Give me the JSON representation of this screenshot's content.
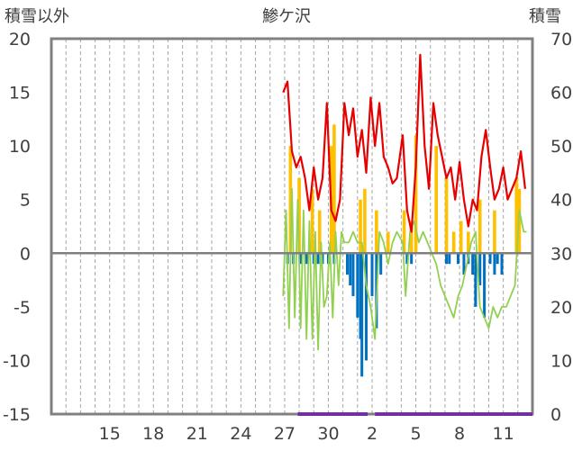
{
  "chart_data": {
    "type": "line",
    "title": "鯵ケ沢",
    "left_axis_label": "積雪以外",
    "right_axis_label": "積雪",
    "left_ylim": [
      -15,
      20
    ],
    "left_ticks": [
      "20",
      "15",
      "10",
      "5",
      "0",
      "-5",
      "-10",
      "-15"
    ],
    "right_ylim": [
      0,
      70
    ],
    "right_ticks": [
      "70",
      "60",
      "50",
      "40",
      "30",
      "20",
      "10",
      "0"
    ],
    "x_ticks": [
      {
        "label": "15",
        "x": 4
      },
      {
        "label": "18",
        "x": 7
      },
      {
        "label": "21",
        "x": 10
      },
      {
        "label": "24",
        "x": 13
      },
      {
        "label": "27",
        "x": 16
      },
      {
        "label": "30",
        "x": 19
      },
      {
        "label": "2",
        "x": 22
      },
      {
        "label": "5",
        "x": 25
      },
      {
        "label": "8",
        "x": 28
      },
      {
        "label": "11",
        "x": 31
      }
    ],
    "xlim": [
      0,
      33
    ],
    "grid": "vertical dashed",
    "colors": {
      "snow_depth": "#e60000",
      "temperature": "#92d050",
      "snowfall": "#ffc000",
      "negative": "#0070c0",
      "bottom_band": "#7030a0",
      "frame": "#808080"
    },
    "series": [
      {
        "key": "snow_depth",
        "axis": "right",
        "color": "#e60000",
        "x": [
          15.9,
          16.2,
          16.5,
          16.8,
          17.1,
          17.4,
          17.7,
          18.0,
          18.3,
          18.6,
          18.9,
          19.2,
          19.5,
          19.8,
          20.1,
          20.4,
          20.7,
          21.0,
          21.3,
          21.6,
          21.9,
          22.2,
          22.5,
          22.8,
          23.1,
          23.4,
          23.7,
          24.1,
          24.4,
          24.7,
          25.0,
          25.3,
          25.6,
          25.9,
          26.2,
          26.5,
          26.8,
          27.1,
          27.4,
          27.7,
          28.0,
          28.3,
          28.6,
          28.9,
          29.2,
          29.5,
          29.8,
          30.1,
          30.4,
          30.7,
          31.0,
          31.3,
          31.6,
          31.9,
          32.2,
          32.5
        ],
        "y": [
          60,
          62,
          49,
          46,
          48,
          44,
          38,
          46,
          40,
          44,
          58,
          38,
          36,
          40,
          58,
          52,
          57,
          48,
          53,
          45,
          59,
          50,
          58,
          48,
          46,
          43,
          44,
          52,
          38,
          34,
          46,
          67,
          50,
          42,
          58,
          52,
          48,
          44,
          46,
          40,
          47,
          40,
          35,
          40,
          38,
          48,
          53,
          46,
          40,
          42,
          46,
          40,
          42,
          44,
          49,
          42
        ]
      },
      {
        "key": "temperature",
        "axis": "left",
        "color": "#92d050",
        "x": [
          15.9,
          16.1,
          16.3,
          16.5,
          16.7,
          16.9,
          17.1,
          17.3,
          17.5,
          17.7,
          17.9,
          18.1,
          18.3,
          18.5,
          18.7,
          18.9,
          19.1,
          19.3,
          19.5,
          19.7,
          19.9,
          20.1,
          20.4,
          20.7,
          21.0,
          21.3,
          21.6,
          21.9,
          22.2,
          22.5,
          22.8,
          23.1,
          23.4,
          23.7,
          24.1,
          24.3,
          24.6,
          24.9,
          25.2,
          25.5,
          25.8,
          26.1,
          26.4,
          26.7,
          27.0,
          27.3,
          27.6,
          27.9,
          28.2,
          28.5,
          28.8,
          29.1,
          29.4,
          29.7,
          30.0,
          30.3,
          30.6,
          30.9,
          31.2,
          31.5,
          31.8,
          32.1,
          32.4,
          32.6
        ],
        "y": [
          -4,
          4,
          -7,
          6,
          -6,
          5,
          -7,
          4,
          -8,
          3,
          -8,
          2,
          -9,
          1,
          -5,
          -4,
          1,
          -6,
          2,
          -3,
          2,
          1,
          1,
          2,
          1,
          1,
          -3,
          -5,
          -8,
          2,
          1,
          -1,
          1,
          2,
          1,
          -4,
          2,
          3,
          1,
          2,
          1,
          0,
          -1,
          -3,
          -4,
          -5,
          -6,
          -4,
          -3,
          -1,
          1,
          2,
          -5,
          -6,
          -7,
          -5,
          -6,
          -5,
          -5,
          -4,
          -3,
          4,
          2,
          2
        ]
      }
    ],
    "snowfall_bars": {
      "x": [
        16.4,
        17.0,
        17.9,
        18.4,
        19.2,
        19.4,
        21.2,
        21.5,
        22.3,
        23.1,
        24.2,
        24.7,
        25.0,
        26.4,
        27.1,
        27.6,
        28.1,
        28.6,
        29.4,
        30.4,
        31.9,
        32.1
      ],
      "y": [
        10,
        7,
        6,
        4,
        10,
        12,
        5,
        6,
        4,
        2,
        4,
        3,
        11,
        10,
        7,
        2,
        3,
        2,
        5,
        4,
        7,
        6
      ]
    },
    "negative_bars": {
      "x": [
        16.2,
        16.6,
        17.1,
        17.5,
        18.0,
        18.3,
        18.6,
        19.0,
        19.4,
        20.3,
        20.5,
        20.7,
        21.0,
        21.2,
        21.3,
        21.6,
        22.0,
        22.3,
        22.6,
        24.4,
        24.7,
        27.1,
        27.3,
        27.9,
        28.3,
        28.6,
        28.9,
        29.1,
        29.4,
        29.7,
        30.1,
        30.4,
        30.6,
        30.9
      ],
      "y": [
        -1,
        -1,
        -1,
        -1,
        -1,
        -1,
        -1,
        -1,
        -1,
        -2,
        -3,
        -4,
        -6,
        -8,
        -11.5,
        -10,
        -4,
        -7,
        -2,
        -1,
        -1,
        -1,
        -1,
        -1,
        -2,
        -1,
        -2,
        -5,
        -3,
        -6,
        -1,
        -2,
        -1,
        -2
      ]
    },
    "bottom_band_ranges": [
      [
        16.9,
        21.7
      ],
      [
        22.2,
        33
      ]
    ]
  }
}
